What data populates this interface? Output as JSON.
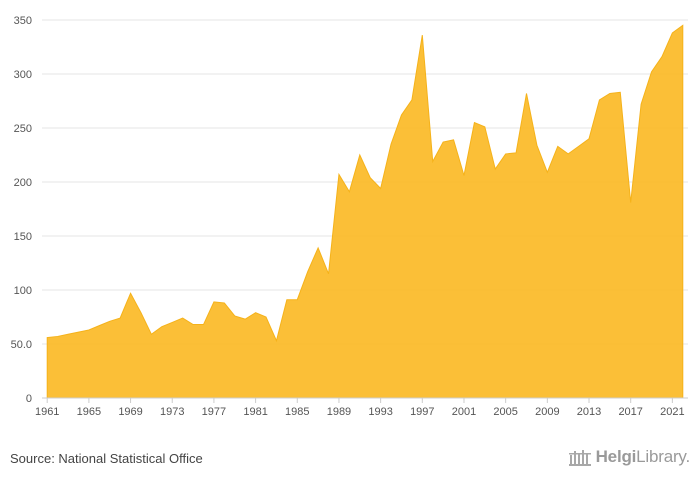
{
  "footer": {
    "source": "Source: National Statistical Office",
    "brand_bold": "Helgi",
    "brand_light": "Library."
  },
  "chart_data": {
    "type": "area",
    "title": "",
    "xlabel": "",
    "ylabel": "",
    "grid": true,
    "legend": "none",
    "fill_color": "#fbbc2c",
    "ylim": [
      0,
      350
    ],
    "yticks": [
      0,
      50.0,
      100,
      150,
      200,
      250,
      300,
      350
    ],
    "ytick_labels": [
      "0",
      "50.0",
      "100",
      "150",
      "200",
      "250",
      "300",
      "350"
    ],
    "xticks": [
      1961,
      1965,
      1969,
      1973,
      1977,
      1981,
      1985,
      1989,
      1993,
      1997,
      2001,
      2005,
      2009,
      2013,
      2017,
      2021
    ],
    "x": [
      1961,
      1962,
      1963,
      1964,
      1965,
      1966,
      1967,
      1968,
      1969,
      1970,
      1971,
      1972,
      1973,
      1974,
      1975,
      1976,
      1977,
      1978,
      1979,
      1980,
      1981,
      1982,
      1983,
      1984,
      1985,
      1986,
      1987,
      1988,
      1989,
      1990,
      1991,
      1992,
      1993,
      1994,
      1995,
      1996,
      1997,
      1998,
      1999,
      2000,
      2001,
      2002,
      2003,
      2004,
      2005,
      2006,
      2007,
      2008,
      2009,
      2010,
      2011,
      2012,
      2013,
      2014,
      2015,
      2016,
      2017,
      2018,
      2019,
      2020,
      2021,
      2022
    ],
    "series": [
      {
        "values": [
          56,
          57,
          59,
          61,
          63,
          67,
          71,
          74,
          97,
          79,
          59,
          66,
          70,
          74,
          68,
          68,
          89,
          88,
          76,
          73,
          79,
          75,
          53,
          91,
          91,
          117,
          139,
          115,
          207,
          191,
          225,
          204,
          194,
          235,
          262,
          276,
          336,
          219,
          237,
          239,
          206,
          255,
          251,
          212,
          226,
          227,
          282,
          234,
          209,
          233,
          226,
          233,
          240,
          276,
          282,
          283,
          181,
          272,
          302,
          316,
          338,
          345
        ]
      }
    ]
  }
}
